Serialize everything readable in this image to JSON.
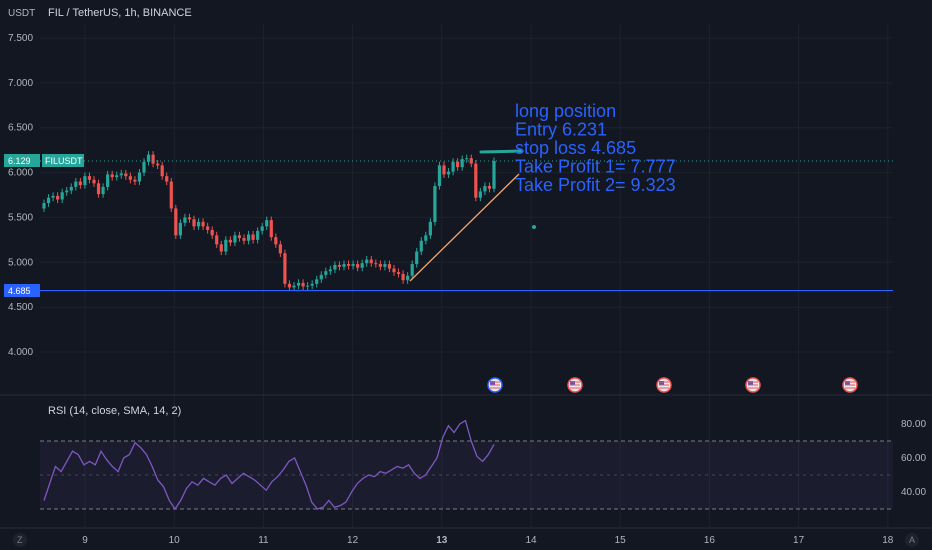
{
  "header": {
    "currency": "USDT",
    "symbol_title": "FIL / TetherUS, 1h, BINANCE"
  },
  "colors": {
    "bg": "#131722",
    "grid": "#1e222d",
    "up": "#26a69a",
    "down": "#ef5350",
    "hline": "#2962ff",
    "trend": "#f7a56b",
    "rsi": "#7e57c2",
    "annotation": "#2962ff"
  },
  "price_tag": {
    "value": "6.129",
    "label": "FILUSDT"
  },
  "stop_tag": {
    "value": "4.685"
  },
  "annotation_lines": [
    "long position",
    "Entry 6.231",
    "stop loss 4.685",
    "Take Profit 1= 7.777",
    "Take Profit 2= 9.323"
  ],
  "rsi_panel": {
    "title": "RSI (14, close, SMA, 14, 2)",
    "ticks": [
      "80.00",
      "60.00",
      "40.00"
    ],
    "upper_band": 70,
    "lower_band": 30
  },
  "bottom_icons": {
    "left": "Z",
    "right": "A"
  },
  "chart_data": {
    "type": "candlestick",
    "title": "FIL / TetherUS, 1h, BINANCE",
    "x_ticks": [
      "9",
      "10",
      "11",
      "12",
      "13",
      "14",
      "15",
      "16",
      "17",
      "18"
    ],
    "y_ticks": [
      "7.500",
      "7.000",
      "6.500",
      "6.000",
      "5.500",
      "5.000",
      "4.500",
      "4.000"
    ],
    "ylim": [
      3.6,
      7.9
    ],
    "last_price": 6.129,
    "horizontal_line": 4.685,
    "candles_close": [
      5.66,
      5.72,
      5.74,
      5.7,
      5.78,
      5.8,
      5.84,
      5.9,
      5.86,
      5.96,
      5.92,
      5.88,
      5.76,
      5.84,
      5.98,
      5.95,
      5.97,
      5.99,
      5.96,
      5.92,
      5.9,
      6.0,
      6.12,
      6.2,
      6.1,
      6.08,
      5.96,
      5.9,
      5.6,
      5.3,
      5.44,
      5.5,
      5.48,
      5.4,
      5.45,
      5.4,
      5.36,
      5.3,
      5.2,
      5.12,
      5.25,
      5.22,
      5.3,
      5.27,
      5.24,
      5.31,
      5.25,
      5.35,
      5.4,
      5.47,
      5.28,
      5.2,
      5.1,
      4.76,
      4.72,
      4.74,
      4.77,
      4.73,
      4.74,
      4.76,
      4.81,
      4.86,
      4.9,
      4.92,
      4.97,
      4.95,
      4.98,
      4.96,
      4.98,
      4.94,
      4.99,
      5.03,
      4.99,
      4.98,
      4.95,
      4.98,
      4.93,
      4.89,
      4.87,
      4.8,
      4.85,
      4.98,
      5.12,
      5.24,
      5.3,
      5.45,
      5.85,
      6.08,
      5.98,
      6.01,
      6.12,
      6.06,
      6.15,
      6.16,
      6.1,
      5.72,
      5.79,
      5.85,
      5.82,
      6.129
    ],
    "rsi": [
      35,
      45,
      55,
      52,
      58,
      64,
      62,
      56,
      58,
      56,
      64,
      59,
      55,
      52,
      60,
      62,
      69,
      66,
      62,
      55,
      47,
      43,
      35,
      30,
      35,
      42,
      46,
      44,
      48,
      46,
      44,
      48,
      50,
      45,
      48,
      51,
      49,
      47,
      44,
      41,
      46,
      49,
      53,
      58,
      60,
      52,
      44,
      34,
      30,
      31,
      35,
      31,
      32,
      34,
      40,
      45,
      48,
      50,
      49,
      52,
      51,
      53,
      55,
      54,
      56,
      51,
      48,
      50,
      55,
      60,
      72,
      79,
      75,
      80,
      82,
      70,
      61,
      58,
      62,
      68
    ],
    "annotations": [
      "long position",
      "Entry 6.231",
      "stop loss 4.685",
      "Take Profit 1= 7.777",
      "Take Profit 2= 9.323"
    ],
    "rsi_ticks": [
      80,
      60,
      40
    ],
    "rsi_bands": [
      70,
      30
    ]
  }
}
